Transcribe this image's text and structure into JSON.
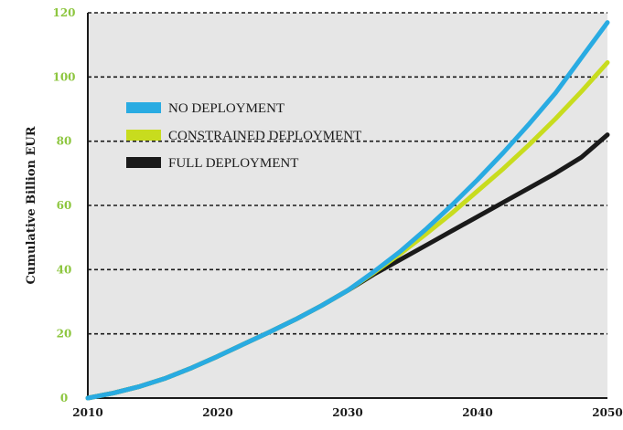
{
  "chart_data": {
    "type": "line",
    "title": "",
    "xlabel": "",
    "ylabel": "Cumulative Billion EUR",
    "xlim": [
      2010,
      2050
    ],
    "ylim": [
      0,
      120
    ],
    "x_ticks": [
      "2010",
      "2020",
      "2030",
      "2040",
      "2050"
    ],
    "y_ticks": [
      "0",
      "20",
      "40",
      "60",
      "80",
      "100",
      "120"
    ],
    "grid": "horizontal-dashed",
    "legend_position": "top-left",
    "colors": {
      "plot_background": "#e6e6e6",
      "grid": "#1a1a1a",
      "axis": "#1a1a1a",
      "ytick_label": "#8dc63f",
      "xtick_label": "#1a1a1a"
    },
    "series": [
      {
        "name": "NO DEPLOYMENT",
        "color": "#29abe2",
        "x": [
          2010,
          2012,
          2014,
          2016,
          2018,
          2020,
          2022,
          2024,
          2026,
          2028,
          2030,
          2032,
          2034,
          2036,
          2038,
          2040,
          2042,
          2044,
          2046,
          2048,
          2050
        ],
        "y": [
          0,
          1.6,
          3.6,
          6.2,
          9.4,
          13,
          16.8,
          20.6,
          24.5,
          28.8,
          33.5,
          39.3,
          45.5,
          52.5,
          60,
          68,
          76.5,
          85.5,
          95,
          106,
          117
        ]
      },
      {
        "name": "CONSTRAINED DEPLOYMENT",
        "color": "#c8dc1e",
        "x": [
          2010,
          2012,
          2014,
          2016,
          2018,
          2020,
          2022,
          2024,
          2026,
          2028,
          2030,
          2032,
          2034,
          2036,
          2038,
          2040,
          2042,
          2044,
          2046,
          2048,
          2050
        ],
        "y": [
          0,
          1.6,
          3.6,
          6.2,
          9.4,
          13,
          16.8,
          20.6,
          24.5,
          28.8,
          33.5,
          39,
          44.8,
          51,
          57.5,
          64.5,
          71.5,
          79,
          87,
          95.5,
          104.5
        ]
      },
      {
        "name": "FULL DEPLOYMENT",
        "color": "#1a1a1a",
        "x": [
          2010,
          2012,
          2014,
          2016,
          2018,
          2020,
          2022,
          2024,
          2026,
          2028,
          2030,
          2032,
          2034,
          2036,
          2038,
          2040,
          2042,
          2044,
          2046,
          2048,
          2050
        ],
        "y": [
          0,
          1.6,
          3.6,
          6.2,
          9.4,
          13,
          16.8,
          20.6,
          24.5,
          28.8,
          33.5,
          38.5,
          43,
          47.5,
          52,
          56.5,
          61,
          65.5,
          70,
          75,
          82
        ]
      }
    ]
  }
}
